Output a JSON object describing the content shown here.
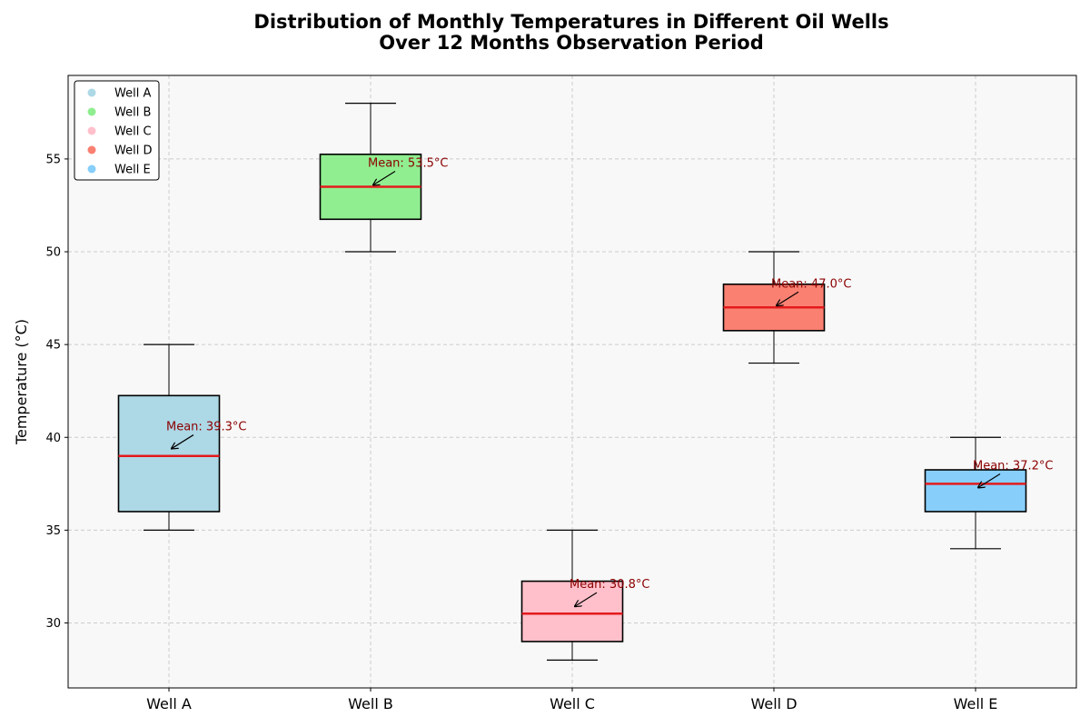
{
  "chart_data": {
    "type": "box",
    "title_lines": [
      "Distribution of Monthly Temperatures in Different Oil Wells",
      "Over 12 Months Observation Period"
    ],
    "xlabel": "",
    "ylabel": "Temperature (°C)",
    "ylim": [
      26.5,
      59.5
    ],
    "yticks": [
      30,
      35,
      40,
      45,
      50,
      55
    ],
    "grid": true,
    "legend_position": "top-left",
    "median_color": "#e41a1c",
    "mean_label_color": "#8b0000",
    "series": [
      {
        "name": "Well A",
        "color": "#add8e6",
        "min": 35,
        "q1": 36,
        "median": 39,
        "q3": 42.25,
        "max": 45,
        "mean": 39.3,
        "mean_label": "Mean: 39.3°C"
      },
      {
        "name": "Well B",
        "color": "#90ee90",
        "min": 50,
        "q1": 51.75,
        "median": 53.5,
        "q3": 55.25,
        "max": 58,
        "mean": 53.5,
        "mean_label": "Mean: 53.5°C"
      },
      {
        "name": "Well C",
        "color": "#ffc0cb",
        "min": 28,
        "q1": 29,
        "median": 30.5,
        "q3": 32.25,
        "max": 35,
        "mean": 30.8,
        "mean_label": "Mean: 30.8°C"
      },
      {
        "name": "Well D",
        "color": "#fa8072",
        "min": 44,
        "q1": 45.75,
        "median": 47,
        "q3": 48.25,
        "max": 50,
        "mean": 47.0,
        "mean_label": "Mean: 47.0°C"
      },
      {
        "name": "Well E",
        "color": "#87cefa",
        "min": 34,
        "q1": 36,
        "median": 37.5,
        "q3": 38.25,
        "max": 40,
        "mean": 37.2,
        "mean_label": "Mean: 37.2°C"
      }
    ]
  }
}
